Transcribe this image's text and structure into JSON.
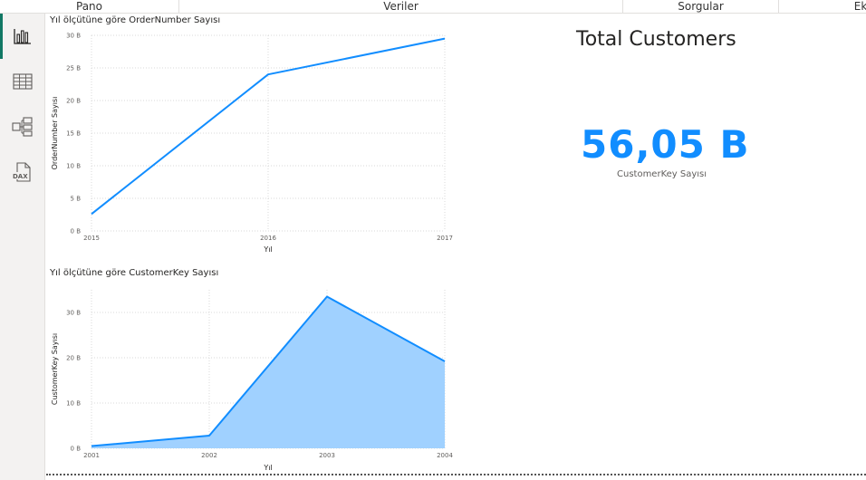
{
  "ribbon": {
    "tabs": [
      {
        "label": "Pano"
      },
      {
        "label": "Veriler"
      },
      {
        "label": "Sorgular"
      },
      {
        "label": "Ek"
      }
    ]
  },
  "sidebar": {
    "items": [
      {
        "name": "report-view",
        "icon": "bar-chart-icon",
        "active": true
      },
      {
        "name": "table-view",
        "icon": "table-icon",
        "active": false
      },
      {
        "name": "model-view",
        "icon": "model-icon",
        "active": false
      },
      {
        "name": "dax-view",
        "icon": "dax-query-icon",
        "label": "DAX",
        "active": false
      }
    ]
  },
  "colors": {
    "accent": "#118dff",
    "line": "#118dff",
    "area_fill": "#a0d1ff",
    "active_indicator": "#117865"
  },
  "card": {
    "title": "Total Customers",
    "value": "56,05 B",
    "label": "CustomerKey Sayısı"
  },
  "chart_data": [
    {
      "type": "line",
      "title": "Yıl ölçütüne göre OrderNumber Sayısı",
      "xlabel": "Yıl",
      "ylabel": "OrderNumber Sayısı",
      "x": [
        2015,
        2016,
        2017
      ],
      "x_ticks": [
        "2015",
        "2016",
        "2017"
      ],
      "series": [
        {
          "values": [
            2.6,
            24,
            29.5
          ]
        }
      ],
      "ylim": [
        0,
        30
      ],
      "y_ticks": [
        "0 B",
        "5 B",
        "10 B",
        "15 B",
        "20 B",
        "25 B",
        "30 B"
      ],
      "grid": true
    },
    {
      "type": "area",
      "title": "Yıl ölçütüne göre CustomerKey Sayısı",
      "xlabel": "Yıl",
      "ylabel": "CustomerKey Sayısı",
      "x": [
        2001,
        2002,
        2003,
        2004
      ],
      "x_ticks": [
        "2001",
        "2002",
        "2003",
        "2004"
      ],
      "series": [
        {
          "values": [
            0.5,
            2.8,
            33.5,
            19.2
          ]
        }
      ],
      "ylim": [
        0,
        35
      ],
      "y_ticks": [
        "0 B",
        "10 B",
        "20 B",
        "30 B"
      ],
      "y_tick_values": [
        0,
        10,
        20,
        30
      ],
      "grid": true
    }
  ]
}
